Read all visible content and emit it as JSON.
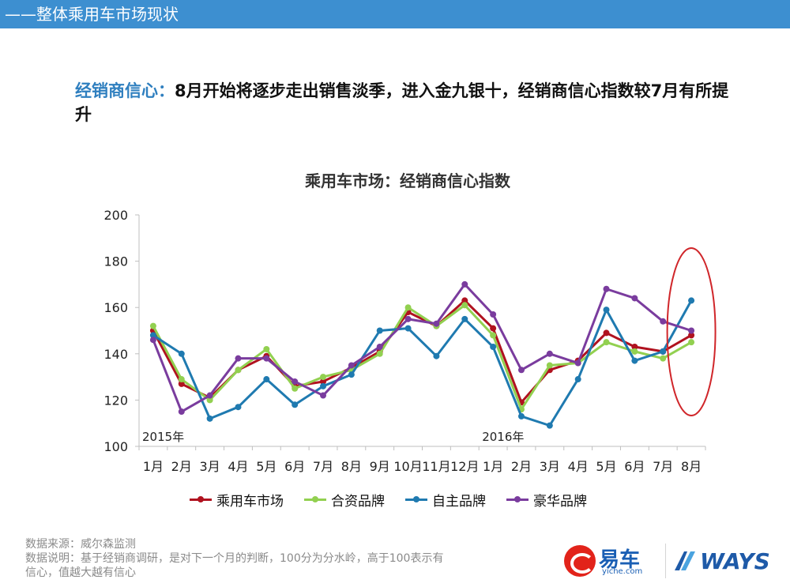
{
  "header": {
    "title": "——整体乘用车市场现状"
  },
  "headline": {
    "lead": "经销商信心：",
    "text": "8月开始将逐步走出销售淡季，进入金九银十，经销商信心指数较7月有所提升"
  },
  "colors": {
    "header_bar": "#3d8fd0",
    "lead_text": "#2f7fbf",
    "highlight_ellipse": "#d0262a"
  },
  "chart_data": {
    "type": "line",
    "title": "乘用车市场：经销商信心指数",
    "categories": [
      "1月",
      "2月",
      "3月",
      "4月",
      "5月",
      "6月",
      "7月",
      "8月",
      "9月",
      "10月",
      "11月",
      "12月",
      "1月",
      "2月",
      "3月",
      "4月",
      "5月",
      "6月",
      "7月",
      "8月"
    ],
    "year_labels": [
      {
        "index": 0,
        "text": "2015年"
      },
      {
        "index": 12,
        "text": "2016年"
      }
    ],
    "ylim": [
      100,
      200
    ],
    "yticks": [
      100,
      120,
      140,
      160,
      180,
      200
    ],
    "grid": false,
    "legend_position": "bottom",
    "highlight": {
      "type": "ellipse",
      "index": 19
    },
    "series": [
      {
        "name": "乘用车市场",
        "color": "#b0121f",
        "values": [
          150,
          127,
          121,
          133,
          139,
          126,
          128,
          134,
          141,
          158,
          152,
          163,
          151,
          119,
          133,
          137,
          149,
          143,
          141,
          148
        ]
      },
      {
        "name": "合资品牌",
        "color": "#92d050",
        "values": [
          152,
          129,
          120,
          133,
          142,
          125,
          130,
          133,
          140,
          160,
          152,
          161,
          148,
          116,
          135,
          136,
          145,
          141,
          138,
          145
        ]
      },
      {
        "name": "自主品牌",
        "color": "#1f7ab0",
        "values": [
          148,
          140,
          112,
          117,
          129,
          118,
          126,
          131,
          150,
          151,
          139,
          155,
          143,
          113,
          109,
          129,
          159,
          137,
          141,
          163
        ]
      },
      {
        "name": "豪华品牌",
        "color": "#7a3c9e",
        "values": [
          146,
          115,
          122,
          138,
          138,
          128,
          122,
          135,
          143,
          155,
          153,
          170,
          157,
          133,
          140,
          136,
          168,
          164,
          154,
          150
        ]
      }
    ]
  },
  "footnote": {
    "line1": "数据来源：威尔森监测",
    "line2": "数据说明：基于经销商调研，是对下一个月的判断，100分为分水岭，高于100表示有",
    "line3": "信心，值越大越有信心"
  },
  "logos": {
    "yiche_name": "易车",
    "yiche_sub": "yiche.com",
    "ways": "WAYS"
  }
}
